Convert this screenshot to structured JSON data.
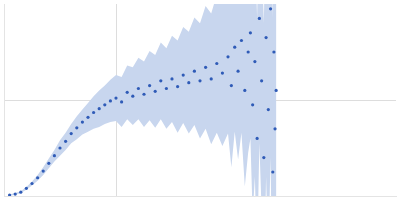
{
  "chart_data": {
    "type": "scatter",
    "x": [
      0.05,
      0.1,
      0.15,
      0.2,
      0.25,
      0.3,
      0.35,
      0.4,
      0.45,
      0.5,
      0.55,
      0.6,
      0.65,
      0.7,
      0.75,
      0.8,
      0.85,
      0.9,
      0.95,
      1.0,
      1.05,
      1.1,
      1.15,
      1.2,
      1.25,
      1.3,
      1.35,
      1.4,
      1.45,
      1.5,
      1.55,
      1.6,
      1.65,
      1.7,
      1.75,
      1.8,
      1.85,
      1.9,
      1.95,
      2.0,
      2.03,
      2.06,
      2.09,
      2.12,
      2.15,
      2.18,
      2.2,
      2.22,
      2.24,
      2.26,
      2.28,
      2.3,
      2.32,
      2.34,
      2.36,
      2.38,
      2.4,
      2.41,
      2.42,
      2.43
    ],
    "series": [
      {
        "color": "#2f5bb7",
        "marker": "circle",
        "values": [
          0.01,
          0.02,
          0.04,
          0.08,
          0.13,
          0.19,
          0.26,
          0.34,
          0.42,
          0.5,
          0.57,
          0.65,
          0.71,
          0.77,
          0.82,
          0.87,
          0.91,
          0.95,
          0.99,
          1.02,
          0.98,
          1.08,
          1.04,
          1.12,
          1.06,
          1.15,
          1.09,
          1.2,
          1.12,
          1.22,
          1.14,
          1.26,
          1.18,
          1.3,
          1.2,
          1.34,
          1.22,
          1.38,
          1.28,
          1.45,
          1.15,
          1.55,
          1.3,
          1.62,
          1.1,
          1.5,
          1.7,
          0.95,
          1.4,
          0.6,
          1.85,
          1.2,
          0.4,
          1.65,
          0.9,
          1.95,
          0.25,
          1.5,
          0.7,
          1.1
        ],
        "errors": [
          0.005,
          0.01,
          0.01,
          0.015,
          0.02,
          0.03,
          0.04,
          0.05,
          0.06,
          0.08,
          0.09,
          0.1,
          0.12,
          0.13,
          0.15,
          0.17,
          0.19,
          0.2,
          0.22,
          0.24,
          0.26,
          0.28,
          0.3,
          0.32,
          0.34,
          0.36,
          0.38,
          0.4,
          0.42,
          0.45,
          0.48,
          0.5,
          0.53,
          0.56,
          0.6,
          0.64,
          0.68,
          0.72,
          0.76,
          0.8,
          0.85,
          0.88,
          0.92,
          0.96,
          1.0,
          1.05,
          1.1,
          1.15,
          1.2,
          1.25,
          1.3,
          1.35,
          1.4,
          1.45,
          1.5,
          1.55,
          1.6,
          1.65,
          1.7,
          1.75
        ],
        "error_color": "#c8d6ee"
      }
    ],
    "xlim": [
      0,
      3.5
    ],
    "xticks": [
      1
    ],
    "ylim": [
      0,
      2
    ],
    "yticks": [
      1
    ],
    "grid": true,
    "tick_labels": false
  }
}
